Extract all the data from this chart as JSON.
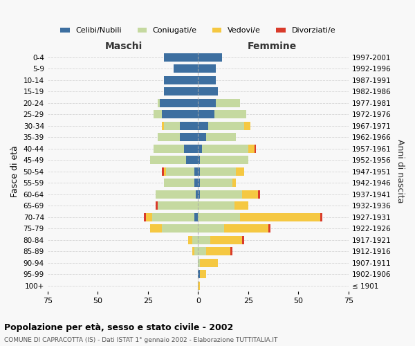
{
  "age_groups": [
    "100+",
    "95-99",
    "90-94",
    "85-89",
    "80-84",
    "75-79",
    "70-74",
    "65-69",
    "60-64",
    "55-59",
    "50-54",
    "45-49",
    "40-44",
    "35-39",
    "30-34",
    "25-29",
    "20-24",
    "15-19",
    "10-14",
    "5-9",
    "0-4"
  ],
  "birth_years": [
    "≤ 1901",
    "1902-1906",
    "1907-1911",
    "1912-1916",
    "1917-1921",
    "1922-1926",
    "1927-1931",
    "1932-1936",
    "1937-1941",
    "1942-1946",
    "1947-1951",
    "1952-1956",
    "1957-1961",
    "1962-1966",
    "1967-1971",
    "1972-1976",
    "1977-1981",
    "1982-1986",
    "1987-1991",
    "1992-1996",
    "1997-2001"
  ],
  "male": {
    "celibi": [
      0,
      0,
      0,
      0,
      0,
      0,
      2,
      0,
      1,
      2,
      2,
      6,
      7,
      9,
      9,
      18,
      19,
      17,
      17,
      12,
      17
    ],
    "coniugati": [
      0,
      0,
      0,
      2,
      3,
      18,
      21,
      20,
      20,
      15,
      14,
      18,
      15,
      11,
      8,
      4,
      1,
      0,
      0,
      0,
      0
    ],
    "vedovi": [
      0,
      0,
      0,
      1,
      2,
      6,
      3,
      0,
      0,
      0,
      1,
      0,
      0,
      0,
      1,
      0,
      0,
      0,
      0,
      0,
      0
    ],
    "divorziati": [
      0,
      0,
      0,
      0,
      0,
      0,
      1,
      1,
      0,
      0,
      1,
      0,
      0,
      0,
      0,
      0,
      0,
      0,
      0,
      0,
      0
    ]
  },
  "female": {
    "nubili": [
      0,
      1,
      0,
      0,
      0,
      0,
      0,
      0,
      1,
      1,
      1,
      1,
      2,
      4,
      5,
      8,
      9,
      10,
      9,
      9,
      12
    ],
    "coniugate": [
      0,
      0,
      1,
      4,
      6,
      13,
      21,
      18,
      21,
      16,
      18,
      24,
      23,
      15,
      18,
      16,
      12,
      0,
      0,
      0,
      0
    ],
    "vedove": [
      1,
      3,
      9,
      12,
      16,
      22,
      40,
      7,
      8,
      2,
      4,
      0,
      3,
      0,
      3,
      0,
      0,
      0,
      0,
      0,
      0
    ],
    "divorziate": [
      0,
      0,
      0,
      1,
      1,
      1,
      1,
      0,
      1,
      0,
      0,
      0,
      1,
      0,
      0,
      0,
      0,
      0,
      0,
      0,
      0
    ]
  },
  "colors": {
    "celibi_nubili": "#3d6fa0",
    "coniugati": "#c5d9a0",
    "vedovi": "#f5c842",
    "divorziati": "#d93b2b"
  },
  "title": "Popolazione per età, sesso e stato civile - 2002",
  "subtitle": "COMUNE DI CAPRACOTTA (IS) - Dati ISTAT 1° gennaio 2002 - Elaborazione TUTTITALIA.IT",
  "xlabel_left": "Maschi",
  "xlabel_right": "Femmine",
  "ylabel_left": "Fasce di età",
  "ylabel_right": "Anni di nascita",
  "xlim": 75,
  "bg_color": "#f8f8f8",
  "grid_color": "#cccccc"
}
